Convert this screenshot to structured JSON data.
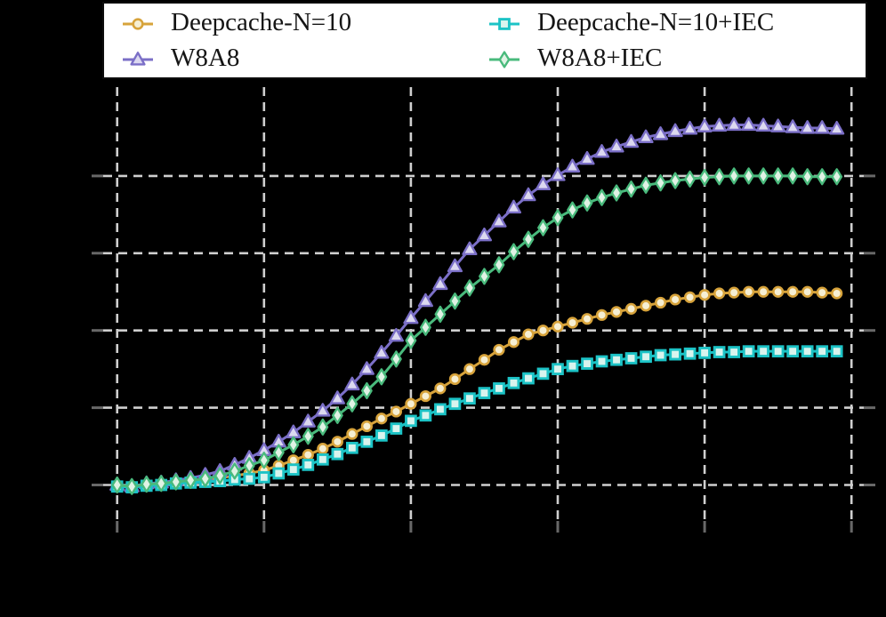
{
  "figure": {
    "background_color": "#000000",
    "plot_background_color": "#000000",
    "grid_color": "#cfcfcf",
    "tick_color": "#686868",
    "legend_background": "#ffffff",
    "legend_border_color": "#0d0d0d",
    "legend_text_color": "#151515"
  },
  "legend": {
    "entries": [
      {
        "label": "Deepcache-N=10",
        "series_index": 0
      },
      {
        "label": "Deepcache-N=10+IEC",
        "series_index": 2
      },
      {
        "label": "W8A8",
        "series_index": 1
      },
      {
        "label": "W8A8+IEC",
        "series_index": 3
      }
    ]
  },
  "chart_data": {
    "type": "line",
    "title": "",
    "xlabel": "",
    "ylabel": "",
    "axis_tick_labels_visible": false,
    "grid": true,
    "legend_position": "above-plot",
    "x_start": 0,
    "x_step": 1,
    "x_ticks": [
      0,
      10,
      20,
      30,
      40,
      50
    ],
    "y_ticks": [
      0,
      1,
      2,
      3,
      4
    ],
    "xlim": [
      -1,
      51
    ],
    "ylim": [
      -0.47,
      5.15
    ],
    "series": [
      {
        "name": "Deepcache-N=10",
        "marker": "circle",
        "color": "#d7a33b",
        "marker_fill": "#f6efd3",
        "values": [
          -0.01,
          -0.02,
          0.0,
          0.01,
          0.03,
          0.04,
          0.06,
          0.09,
          0.12,
          0.15,
          0.19,
          0.25,
          0.32,
          0.39,
          0.47,
          0.56,
          0.66,
          0.76,
          0.86,
          0.95,
          1.05,
          1.15,
          1.25,
          1.37,
          1.5,
          1.62,
          1.75,
          1.85,
          1.95,
          2.0,
          2.05,
          2.1,
          2.15,
          2.2,
          2.24,
          2.28,
          2.32,
          2.36,
          2.4,
          2.43,
          2.46,
          2.48,
          2.49,
          2.5,
          2.5,
          2.5,
          2.5,
          2.5,
          2.49,
          2.48
        ]
      },
      {
        "name": "W8A8",
        "marker": "triangle",
        "color": "#7b6fc7",
        "marker_fill": "#dcd9f0",
        "values": [
          0.0,
          -0.02,
          0.02,
          0.03,
          0.06,
          0.09,
          0.13,
          0.18,
          0.26,
          0.35,
          0.45,
          0.56,
          0.68,
          0.82,
          0.96,
          1.12,
          1.3,
          1.5,
          1.71,
          1.93,
          2.16,
          2.38,
          2.6,
          2.83,
          3.05,
          3.23,
          3.41,
          3.59,
          3.75,
          3.89,
          4.01,
          4.12,
          4.22,
          4.31,
          4.38,
          4.44,
          4.5,
          4.54,
          4.58,
          4.61,
          4.64,
          4.65,
          4.66,
          4.66,
          4.65,
          4.64,
          4.63,
          4.62,
          4.62,
          4.61
        ]
      },
      {
        "name": "Deepcache-N=10+IEC",
        "marker": "square",
        "color": "#1cc3c6",
        "marker_fill": "#d9f4ee",
        "values": [
          -0.02,
          -0.03,
          -0.01,
          0.0,
          0.02,
          0.03,
          0.04,
          0.05,
          0.07,
          0.08,
          0.1,
          0.15,
          0.2,
          0.26,
          0.33,
          0.4,
          0.48,
          0.56,
          0.64,
          0.73,
          0.83,
          0.9,
          0.98,
          1.05,
          1.12,
          1.19,
          1.25,
          1.32,
          1.38,
          1.44,
          1.5,
          1.54,
          1.57,
          1.6,
          1.62,
          1.64,
          1.66,
          1.68,
          1.69,
          1.7,
          1.71,
          1.72,
          1.72,
          1.73,
          1.73,
          1.73,
          1.73,
          1.73,
          1.73,
          1.73
        ]
      },
      {
        "name": "W8A8+IEC",
        "marker": "diamond",
        "color": "#49ba7c",
        "marker_fill": "#e0f3e5",
        "values": [
          0.0,
          -0.02,
          0.01,
          0.02,
          0.04,
          0.06,
          0.08,
          0.12,
          0.18,
          0.25,
          0.32,
          0.42,
          0.52,
          0.63,
          0.75,
          0.9,
          1.05,
          1.22,
          1.4,
          1.63,
          1.87,
          2.04,
          2.21,
          2.38,
          2.55,
          2.7,
          2.85,
          3.02,
          3.18,
          3.33,
          3.46,
          3.56,
          3.65,
          3.72,
          3.78,
          3.83,
          3.88,
          3.91,
          3.94,
          3.96,
          3.98,
          3.99,
          4.0,
          4.0,
          4.0,
          4.0,
          4.0,
          3.99,
          3.99,
          3.99
        ]
      }
    ]
  }
}
